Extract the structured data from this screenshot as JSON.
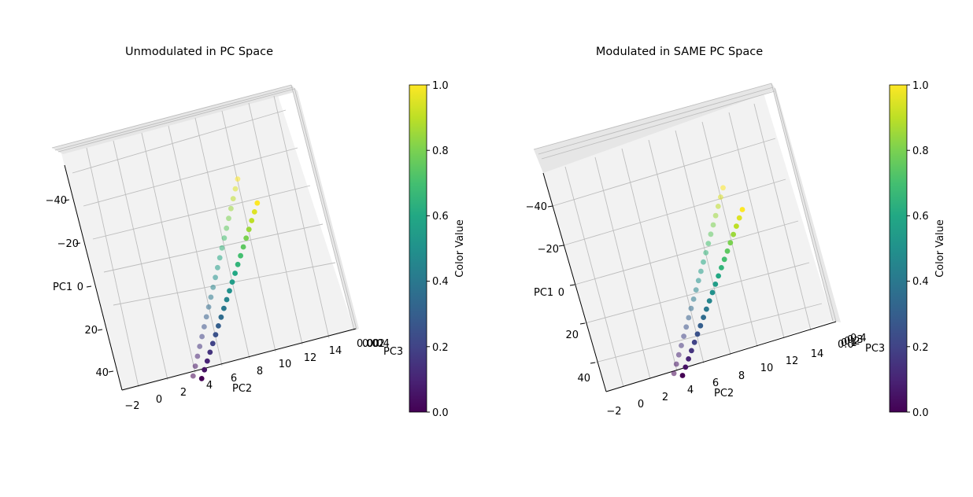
{
  "chart_data": [
    {
      "type": "scatter",
      "title": "Unmodulated in PC Space",
      "xlabel": "PC2",
      "ylabel": "PC1",
      "zlabel": "PC3",
      "pc1_ticks": [
        "−40",
        "−20",
        "0",
        "20",
        "40"
      ],
      "pc2_ticks": [
        "−2",
        "0",
        "2",
        "4",
        "6",
        "8",
        "10",
        "12",
        "14"
      ],
      "pc3_ticks": [
        "0.00",
        "0.02",
        "0.04"
      ],
      "xlim": [
        -2.5,
        15
      ],
      "ylim": [
        -50,
        45
      ],
      "grid": true,
      "colormap": "viridis",
      "colorbar": {
        "label": "Color Value",
        "range": [
          0,
          1
        ],
        "ticks": [
          "0.0",
          "0.2",
          "0.4",
          "0.6",
          "0.8",
          "1.0"
        ]
      },
      "series": [
        {
          "points": [
            [
              0,
              43,
              0.0
            ],
            [
              0.5,
              39.7,
              0.05
            ],
            [
              1.0,
              36.4,
              0.1
            ],
            [
              1.5,
              33.1,
              0.15
            ],
            [
              2.0,
              29.8,
              0.2
            ],
            [
              2.5,
              26.5,
              0.25
            ],
            [
              3.0,
              23.2,
              0.3
            ],
            [
              3.5,
              19.9,
              0.35
            ],
            [
              4.0,
              16.6,
              0.4
            ],
            [
              4.5,
              13.3,
              0.45
            ],
            [
              5.0,
              10.0,
              0.5
            ],
            [
              5.5,
              6.7,
              0.55
            ],
            [
              6.0,
              3.4,
              0.6
            ],
            [
              6.5,
              0.1,
              0.65
            ],
            [
              7.0,
              -3.2,
              0.7
            ],
            [
              7.5,
              -6.5,
              0.75
            ],
            [
              8.0,
              -9.8,
              0.8
            ],
            [
              8.5,
              -13.1,
              0.85
            ],
            [
              9.0,
              -16.4,
              0.9
            ],
            [
              9.5,
              -19.7,
              0.95
            ],
            [
              10.0,
              -23.0,
              1.0
            ]
          ]
        },
        {
          "points": [
            [
              -0.5,
              41,
              0.0
            ],
            [
              0.0,
              37.2,
              0.05
            ],
            [
              0.5,
              33.4,
              0.1
            ],
            [
              1.0,
              29.6,
              0.15
            ],
            [
              1.5,
              25.8,
              0.2
            ],
            [
              2.0,
              22.0,
              0.25
            ],
            [
              2.5,
              18.2,
              0.3
            ],
            [
              3.0,
              14.4,
              0.35
            ],
            [
              3.5,
              10.6,
              0.4
            ],
            [
              4.0,
              6.8,
              0.45
            ],
            [
              4.5,
              3.0,
              0.5
            ],
            [
              5.0,
              -0.8,
              0.55
            ],
            [
              5.5,
              -4.6,
              0.6
            ],
            [
              6.0,
              -8.4,
              0.65
            ],
            [
              6.5,
              -12.2,
              0.7
            ],
            [
              7.0,
              -16.0,
              0.75
            ],
            [
              7.5,
              -19.8,
              0.8
            ],
            [
              8.0,
              -23.6,
              0.85
            ],
            [
              8.5,
              -27.4,
              0.9
            ],
            [
              9.0,
              -31.2,
              0.95
            ],
            [
              9.5,
              -35.0,
              1.0
            ]
          ]
        }
      ]
    },
    {
      "type": "scatter",
      "title": "Modulated in SAME PC Space",
      "xlabel": "PC2",
      "ylabel": "PC1",
      "zlabel": "PC3",
      "pc1_ticks": [
        "−40",
        "−20",
        "0",
        "20",
        "40"
      ],
      "pc2_ticks": [
        "−2",
        "0",
        "2",
        "4",
        "6",
        "8",
        "10",
        "12",
        "14"
      ],
      "pc3_ticks": [
        "0.0",
        "0.1",
        "0.2",
        "0.3",
        "0.4"
      ],
      "xlim": [
        -2.5,
        15
      ],
      "ylim": [
        -50,
        45
      ],
      "grid": true,
      "colormap": "viridis",
      "colorbar": {
        "label": "Color Value",
        "range": [
          0,
          1
        ],
        "ticks": [
          "0.0",
          "0.2",
          "0.4",
          "0.6",
          "0.8",
          "1.0"
        ]
      },
      "series": [
        {
          "points": [
            [
              0,
              43,
              0.0
            ],
            [
              0.5,
              39.7,
              0.05
            ],
            [
              1.0,
              36.4,
              0.1
            ],
            [
              1.5,
              33.1,
              0.15
            ],
            [
              2.0,
              29.8,
              0.2
            ],
            [
              2.5,
              26.5,
              0.25
            ],
            [
              3.0,
              23.2,
              0.3
            ],
            [
              3.5,
              19.9,
              0.35
            ],
            [
              4.0,
              16.6,
              0.4
            ],
            [
              4.5,
              13.3,
              0.45
            ],
            [
              5.0,
              10.0,
              0.5
            ],
            [
              5.5,
              6.7,
              0.55
            ],
            [
              6.0,
              3.4,
              0.6
            ],
            [
              6.5,
              0.1,
              0.65
            ],
            [
              7.0,
              -3.2,
              0.7
            ],
            [
              7.5,
              -6.5,
              0.75
            ],
            [
              8.0,
              -9.8,
              0.8
            ],
            [
              8.5,
              -13.1,
              0.85
            ],
            [
              9.0,
              -16.4,
              0.9
            ],
            [
              9.5,
              -19.7,
              0.95
            ],
            [
              10.0,
              -23.0,
              1.0
            ]
          ]
        },
        {
          "points": [
            [
              -0.5,
              41,
              0.0
            ],
            [
              0.0,
              37.2,
              0.05
            ],
            [
              0.5,
              33.4,
              0.1
            ],
            [
              1.0,
              29.6,
              0.15
            ],
            [
              1.5,
              25.8,
              0.2
            ],
            [
              2.0,
              22.0,
              0.25
            ],
            [
              2.5,
              18.2,
              0.3
            ],
            [
              3.0,
              14.4,
              0.35
            ],
            [
              3.5,
              10.6,
              0.4
            ],
            [
              4.0,
              6.8,
              0.45
            ],
            [
              4.5,
              3.0,
              0.5
            ],
            [
              5.0,
              -0.8,
              0.55
            ],
            [
              5.5,
              -4.6,
              0.6
            ],
            [
              6.0,
              -8.4,
              0.65
            ],
            [
              6.5,
              -12.2,
              0.7
            ],
            [
              7.0,
              -16.0,
              0.75
            ],
            [
              7.5,
              -19.8,
              0.8
            ],
            [
              8.0,
              -23.6,
              0.85
            ],
            [
              8.5,
              -27.4,
              0.9
            ],
            [
              9.0,
              -31.2,
              0.95
            ],
            [
              9.5,
              -35.0,
              1.0
            ]
          ]
        }
      ]
    }
  ]
}
